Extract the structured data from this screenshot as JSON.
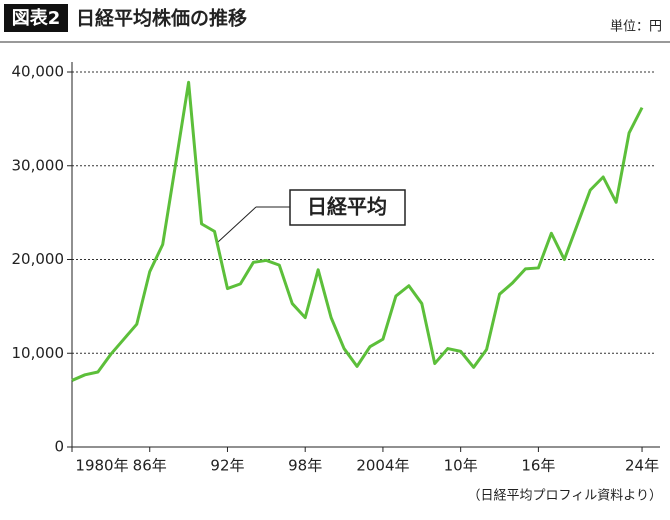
{
  "figure_label": "図表2",
  "unit": "単位：円",
  "source": "（日経平均プロフィル資料より）",
  "chart_data": {
    "type": "line",
    "title": "日経平均株価の推移",
    "annotation": "日経平均",
    "x": [
      1980,
      1981,
      1982,
      1983,
      1984,
      1985,
      1986,
      1987,
      1988,
      1989,
      1990,
      1991,
      1992,
      1993,
      1994,
      1995,
      1996,
      1997,
      1998,
      1999,
      2000,
      2001,
      2002,
      2003,
      2004,
      2005,
      2006,
      2007,
      2008,
      2009,
      2010,
      2011,
      2012,
      2013,
      2014,
      2015,
      2016,
      2017,
      2018,
      2019,
      2020,
      2021,
      2022,
      2023,
      2024
    ],
    "series": [
      {
        "name": "日経平均",
        "color": "#5cbf3a",
        "values": [
          7100,
          7700,
          8000,
          9900,
          11500,
          13100,
          18700,
          21600,
          30200,
          38900,
          23800,
          23000,
          16900,
          17400,
          19700,
          19900,
          19400,
          15300,
          13800,
          18900,
          13800,
          10500,
          8600,
          10700,
          11500,
          16100,
          17200,
          15300,
          8900,
          10500,
          10200,
          8500,
          10400,
          16300,
          17500,
          19000,
          19100,
          22800,
          20000,
          23700,
          27400,
          28800,
          26100,
          33500,
          36200
        ]
      }
    ],
    "xlim": [
      1980,
      2025
    ],
    "xticks": [
      {
        "value": 1980,
        "label": "1980年"
      },
      {
        "value": 1986,
        "label": "86年"
      },
      {
        "value": 1992,
        "label": "92年"
      },
      {
        "value": 1998,
        "label": "98年"
      },
      {
        "value": 2004,
        "label": "2004年"
      },
      {
        "value": 2010,
        "label": "10年"
      },
      {
        "value": 2016,
        "label": "16年"
      },
      {
        "value": 2024,
        "label": "24年"
      }
    ],
    "ylim": [
      0,
      40000
    ],
    "yticks": [
      0,
      {
        "value": 10000,
        "label": "10,000"
      },
      {
        "value": 20000,
        "label": "20,000"
      },
      {
        "value": 30000,
        "label": "30,000"
      },
      {
        "value": 40000,
        "label": "40,000"
      }
    ],
    "grid": true
  }
}
